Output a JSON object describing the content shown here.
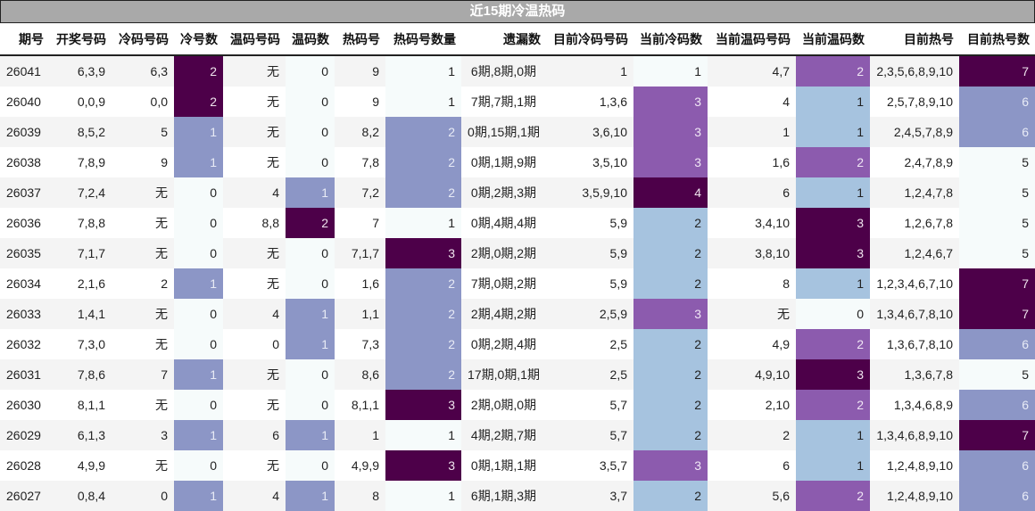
{
  "title": "近15期冷温热码",
  "colors": {
    "title_bg": "#a9a9a9",
    "scale_zero": "#f6fbfb",
    "scale_light_blue": "#a6c3df",
    "scale_periwinkle": "#8c96c6",
    "scale_purple": "#8c5bae",
    "scale_dark_purple": "#4d0049"
  },
  "headers": [
    "期号",
    "开奖号码",
    "冷码号码",
    "冷号数",
    "温码号码",
    "温码数",
    "热码号",
    "热码号数量",
    "遗漏数",
    "目前冷码号码",
    "当前冷码数",
    "当前温码号码",
    "当前温码数",
    "目前热号",
    "目前热号数"
  ],
  "rows": [
    {
      "issue": "26041",
      "draw": "6,3,9",
      "cold": "6,3",
      "cold_n": "2",
      "warm": "无",
      "warm_n": "0",
      "hot": "9",
      "hot_n": "1",
      "miss": "6期,8期,0期",
      "cur_cold": "1",
      "cur_cold_n": "1",
      "cur_warm": "4,7",
      "cur_warm_n": "2",
      "cur_hot": "2,3,5,6,8,9,10",
      "cur_hot_n": "7"
    },
    {
      "issue": "26040",
      "draw": "0,0,9",
      "cold": "0,0",
      "cold_n": "2",
      "warm": "无",
      "warm_n": "0",
      "hot": "9",
      "hot_n": "1",
      "miss": "7期,7期,1期",
      "cur_cold": "1,3,6",
      "cur_cold_n": "3",
      "cur_warm": "4",
      "cur_warm_n": "1",
      "cur_hot": "2,5,7,8,9,10",
      "cur_hot_n": "6"
    },
    {
      "issue": "26039",
      "draw": "8,5,2",
      "cold": "5",
      "cold_n": "1",
      "warm": "无",
      "warm_n": "0",
      "hot": "8,2",
      "hot_n": "2",
      "miss": "0期,15期,1期",
      "cur_cold": "3,6,10",
      "cur_cold_n": "3",
      "cur_warm": "1",
      "cur_warm_n": "1",
      "cur_hot": "2,4,5,7,8,9",
      "cur_hot_n": "6"
    },
    {
      "issue": "26038",
      "draw": "7,8,9",
      "cold": "9",
      "cold_n": "1",
      "warm": "无",
      "warm_n": "0",
      "hot": "7,8",
      "hot_n": "2",
      "miss": "0期,1期,9期",
      "cur_cold": "3,5,10",
      "cur_cold_n": "3",
      "cur_warm": "1,6",
      "cur_warm_n": "2",
      "cur_hot": "2,4,7,8,9",
      "cur_hot_n": "5"
    },
    {
      "issue": "26037",
      "draw": "7,2,4",
      "cold": "无",
      "cold_n": "0",
      "warm": "4",
      "warm_n": "1",
      "hot": "7,2",
      "hot_n": "2",
      "miss": "0期,2期,3期",
      "cur_cold": "3,5,9,10",
      "cur_cold_n": "4",
      "cur_warm": "6",
      "cur_warm_n": "1",
      "cur_hot": "1,2,4,7,8",
      "cur_hot_n": "5"
    },
    {
      "issue": "26036",
      "draw": "7,8,8",
      "cold": "无",
      "cold_n": "0",
      "warm": "8,8",
      "warm_n": "2",
      "hot": "7",
      "hot_n": "1",
      "miss": "0期,4期,4期",
      "cur_cold": "5,9",
      "cur_cold_n": "2",
      "cur_warm": "3,4,10",
      "cur_warm_n": "3",
      "cur_hot": "1,2,6,7,8",
      "cur_hot_n": "5"
    },
    {
      "issue": "26035",
      "draw": "7,1,7",
      "cold": "无",
      "cold_n": "0",
      "warm": "无",
      "warm_n": "0",
      "hot": "7,1,7",
      "hot_n": "3",
      "miss": "2期,0期,2期",
      "cur_cold": "5,9",
      "cur_cold_n": "2",
      "cur_warm": "3,8,10",
      "cur_warm_n": "3",
      "cur_hot": "1,2,4,6,7",
      "cur_hot_n": "5"
    },
    {
      "issue": "26034",
      "draw": "2,1,6",
      "cold": "2",
      "cold_n": "1",
      "warm": "无",
      "warm_n": "0",
      "hot": "1,6",
      "hot_n": "2",
      "miss": "7期,0期,2期",
      "cur_cold": "5,9",
      "cur_cold_n": "2",
      "cur_warm": "8",
      "cur_warm_n": "1",
      "cur_hot": "1,2,3,4,6,7,10",
      "cur_hot_n": "7"
    },
    {
      "issue": "26033",
      "draw": "1,4,1",
      "cold": "无",
      "cold_n": "0",
      "warm": "4",
      "warm_n": "1",
      "hot": "1,1",
      "hot_n": "2",
      "miss": "2期,4期,2期",
      "cur_cold": "2,5,9",
      "cur_cold_n": "3",
      "cur_warm": "无",
      "cur_warm_n": "0",
      "cur_hot": "1,3,4,6,7,8,10",
      "cur_hot_n": "7"
    },
    {
      "issue": "26032",
      "draw": "7,3,0",
      "cold": "无",
      "cold_n": "0",
      "warm": "0",
      "warm_n": "1",
      "hot": "7,3",
      "hot_n": "2",
      "miss": "0期,2期,4期",
      "cur_cold": "2,5",
      "cur_cold_n": "2",
      "cur_warm": "4,9",
      "cur_warm_n": "2",
      "cur_hot": "1,3,6,7,8,10",
      "cur_hot_n": "6"
    },
    {
      "issue": "26031",
      "draw": "7,8,6",
      "cold": "7",
      "cold_n": "1",
      "warm": "无",
      "warm_n": "0",
      "hot": "8,6",
      "hot_n": "2",
      "miss": "17期,0期,1期",
      "cur_cold": "2,5",
      "cur_cold_n": "2",
      "cur_warm": "4,9,10",
      "cur_warm_n": "3",
      "cur_hot": "1,3,6,7,8",
      "cur_hot_n": "5"
    },
    {
      "issue": "26030",
      "draw": "8,1,1",
      "cold": "无",
      "cold_n": "0",
      "warm": "无",
      "warm_n": "0",
      "hot": "8,1,1",
      "hot_n": "3",
      "miss": "2期,0期,0期",
      "cur_cold": "5,7",
      "cur_cold_n": "2",
      "cur_warm": "2,10",
      "cur_warm_n": "2",
      "cur_hot": "1,3,4,6,8,9",
      "cur_hot_n": "6"
    },
    {
      "issue": "26029",
      "draw": "6,1,3",
      "cold": "3",
      "cold_n": "1",
      "warm": "6",
      "warm_n": "1",
      "hot": "1",
      "hot_n": "1",
      "miss": "4期,2期,7期",
      "cur_cold": "5,7",
      "cur_cold_n": "2",
      "cur_warm": "2",
      "cur_warm_n": "1",
      "cur_hot": "1,3,4,6,8,9,10",
      "cur_hot_n": "7"
    },
    {
      "issue": "26028",
      "draw": "4,9,9",
      "cold": "无",
      "cold_n": "0",
      "warm": "无",
      "warm_n": "0",
      "hot": "4,9,9",
      "hot_n": "3",
      "miss": "0期,1期,1期",
      "cur_cold": "3,5,7",
      "cur_cold_n": "3",
      "cur_warm": "6",
      "cur_warm_n": "1",
      "cur_hot": "1,2,4,8,9,10",
      "cur_hot_n": "6"
    },
    {
      "issue": "26027",
      "draw": "0,8,4",
      "cold": "0",
      "cold_n": "1",
      "warm": "4",
      "warm_n": "1",
      "hot": "8",
      "hot_n": "1",
      "miss": "6期,1期,3期",
      "cur_cold": "3,7",
      "cur_cold_n": "2",
      "cur_warm": "5,6",
      "cur_warm_n": "2",
      "cur_hot": "1,2,4,8,9,10",
      "cur_hot_n": "6"
    }
  ]
}
